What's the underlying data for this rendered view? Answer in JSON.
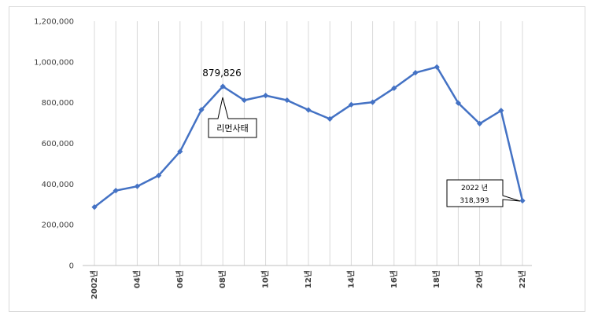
{
  "chart_data": {
    "type": "line",
    "x": [
      "2002",
      "2003",
      "2004",
      "2005",
      "2006",
      "2007",
      "2008",
      "2009",
      "2010",
      "2011",
      "2012",
      "2013",
      "2014",
      "2015",
      "2016",
      "2017",
      "2018",
      "2019",
      "2020",
      "2021",
      "2022"
    ],
    "x_tick_labels": [
      "2002년",
      "04년",
      "06년",
      "08년",
      "10년",
      "12년",
      "14년",
      "16년",
      "18년",
      "20년",
      "22년"
    ],
    "series": [
      {
        "values": [
          287000,
          368000,
          389000,
          442000,
          560000,
          765000,
          879826,
          812000,
          835000,
          812000,
          764000,
          720000,
          790000,
          802000,
          871000,
          947000,
          975000,
          798000,
          697000,
          761000,
          318393
        ]
      }
    ],
    "ylim": [
      0,
      1200000
    ],
    "y_ticks": [
      0,
      200000,
      400000,
      600000,
      800000,
      1000000,
      1200000
    ],
    "y_tick_labels": [
      "0",
      "200,000",
      "400,000",
      "600,000",
      "800,000",
      "1,000,000",
      "1,200,000"
    ],
    "grid": "vertical",
    "line_color": "#4472c4",
    "annotations": {
      "peak_value": "879,826",
      "event_label": "리먼사태",
      "last_year": "2022 년",
      "last_value": "318,393"
    }
  }
}
